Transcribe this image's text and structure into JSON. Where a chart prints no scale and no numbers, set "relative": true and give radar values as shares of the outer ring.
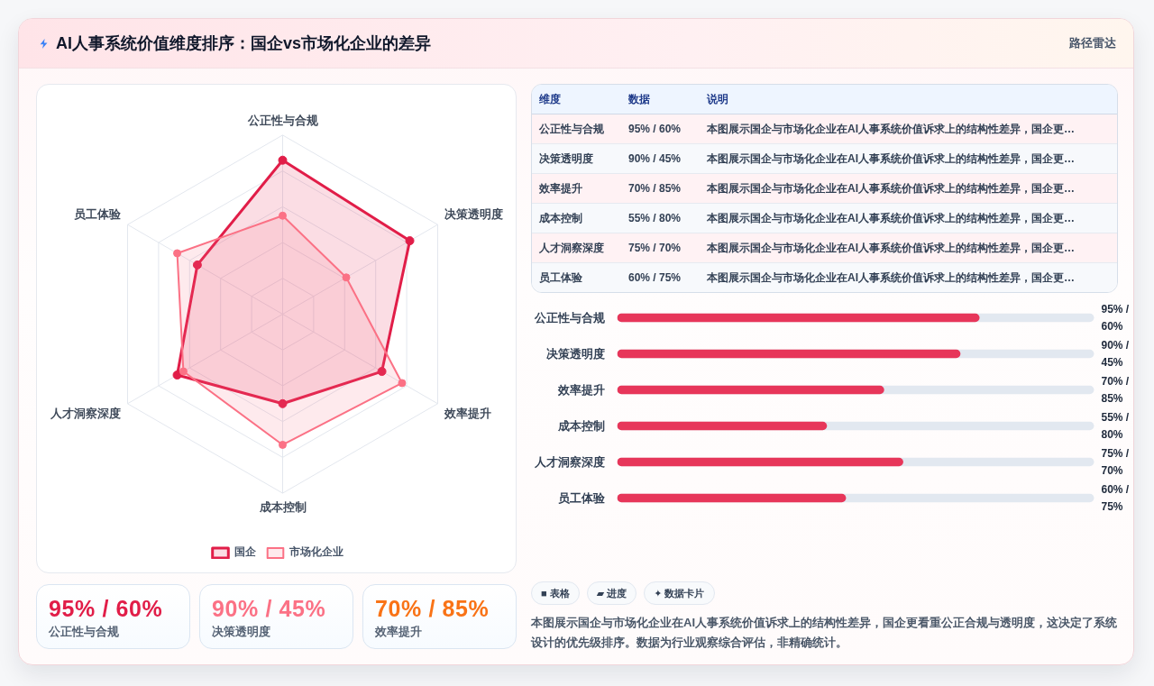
{
  "chart_data": [
    {
      "type": "radar",
      "title": "AI人事系统价值维度排序：国企vs市场化企业的差异",
      "relative": true,
      "categories": [
        "公正性与合规",
        "决策透明度",
        "效率提升",
        "成本控制",
        "人才洞察深度",
        "员工体验"
      ],
      "series": [
        {
          "name": "国企",
          "color": "#e11d48",
          "values": [
            0.86,
            0.82,
            0.64,
            0.5,
            0.68,
            0.55
          ]
        },
        {
          "name": "市场化企业",
          "color": "#fb7185",
          "values": [
            0.55,
            0.41,
            0.77,
            0.73,
            0.64,
            0.68
          ]
        }
      ],
      "grid": true,
      "legend": "bottom",
      "marker": "circle",
      "line_style": "solid"
    },
    {
      "type": "other",
      "subtitle": "路径雷达",
      "categories": [
        "维度",
        "数据",
        "说明"
      ],
      "cell_labels": [
        [
          "公正性与合规",
          "95% / 60%",
          "本图展示国企与市场化企业在AI人事系统价值诉求上的结构性差异，国企更…"
        ],
        [
          "决策透明度",
          "90% / 45%",
          "本图展示国企与市场化企业在AI人事系统价值诉求上的结构性差异，国企更…"
        ],
        [
          "效率提升",
          "70% / 85%",
          "本图展示国企与市场化企业在AI人事系统价值诉求上的结构性差异，国企更…"
        ],
        [
          "成本控制",
          "55% / 80%",
          "本图展示国企与市场化企业在AI人事系统价值诉求上的结构性差异，国企更…"
        ],
        [
          "人才洞察深度",
          "75% / 70%",
          "本图展示国企与市场化企业在AI人事系统价值诉求上的结构性差异，国企更…"
        ],
        [
          "员工体验",
          "60% / 75%",
          "本图展示国企与市场化企业在AI人事系统价值诉求上的结构性差异，国企更…"
        ]
      ]
    },
    {
      "type": "bar",
      "orientation": "horizontal",
      "categories": [
        "公正性与合规",
        "决策透明度",
        "效率提升",
        "成本控制",
        "人才洞察深度",
        "员工体验"
      ],
      "values": [
        95,
        90,
        70,
        55,
        75,
        60
      ],
      "color": "#e7365a",
      "value_labels": [
        "95% / 60%",
        "90% / 45%",
        "70% / 85%",
        "55% / 80%",
        "75% / 70%",
        "60% / 75%"
      ],
      "xlim": [
        0,
        125
      ],
      "tick_labels": "y"
    },
    {
      "type": "other",
      "categories": [
        "公正性与合规",
        "决策透明度",
        "效率提升"
      ],
      "value_labels": [
        "95% / 60%",
        "90% / 45%",
        "70% / 85%"
      ]
    },
    {
      "type": "other",
      "categories": [
        "■ 表格",
        "▰ 进度",
        "✦ 数据卡片"
      ],
      "annotations": [
        "本图展示国企与市场化企业在AI人事系统价值诉求上的结构性差异，国企更看重公正合规与透明度，这决定了系统设计的优先级排序。数据为行业观察综合评估，非精确统计。"
      ]
    }
  ]
}
